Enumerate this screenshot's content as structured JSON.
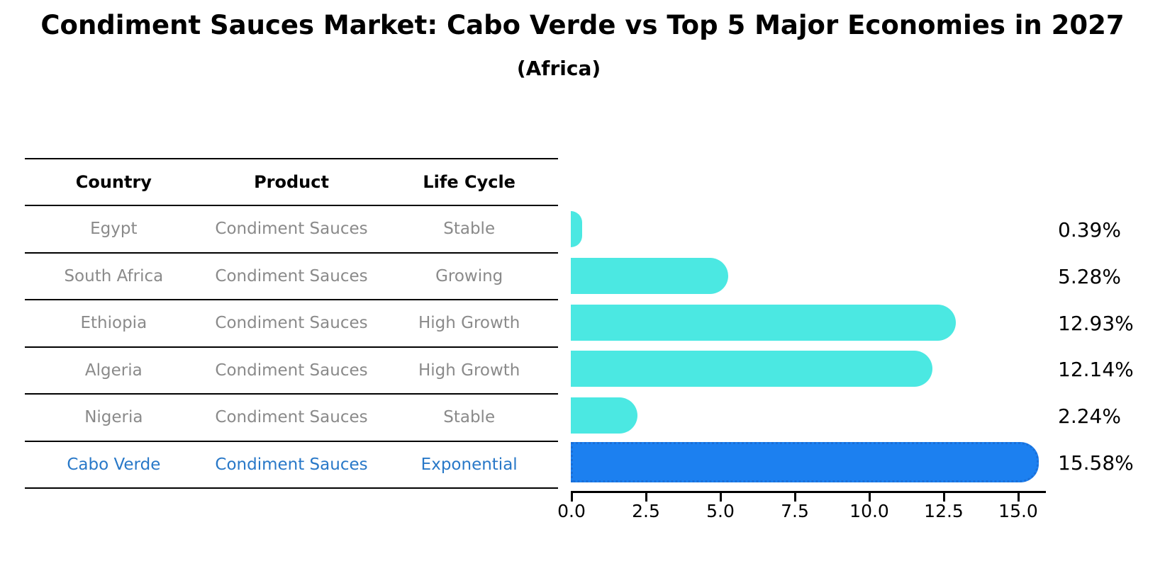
{
  "title": "Condiment Sauces Market: Cabo Verde vs Top 5 Major Economies in 2027",
  "subtitle": "(Africa)",
  "table": {
    "headers": [
      "Country",
      "Product",
      "Life Cycle"
    ],
    "rows": [
      {
        "country": "Egypt",
        "product": "Condiment Sauces",
        "life_cycle": "Stable",
        "highlight": false
      },
      {
        "country": "South Africa",
        "product": "Condiment Sauces",
        "life_cycle": "Growing",
        "highlight": false
      },
      {
        "country": "Ethiopia",
        "product": "Condiment Sauces",
        "life_cycle": "High Growth",
        "highlight": false
      },
      {
        "country": "Algeria",
        "product": "Condiment Sauces",
        "life_cycle": "High Growth",
        "highlight": false
      },
      {
        "country": "Nigeria",
        "product": "Condiment Sauces",
        "life_cycle": "Stable",
        "highlight": false
      },
      {
        "country": "Cabo Verde",
        "product": "Condiment Sauces",
        "life_cycle": "Exponential",
        "highlight": true
      }
    ]
  },
  "chart_data": {
    "type": "bar",
    "orientation": "horizontal",
    "title": "Condiment Sauces Market: Cabo Verde vs Top 5 Major Economies in 2027 (Africa)",
    "categories": [
      "Egypt",
      "South Africa",
      "Ethiopia",
      "Algeria",
      "Nigeria",
      "Cabo Verde"
    ],
    "values": [
      0.39,
      5.28,
      12.93,
      12.14,
      2.24,
      15.58
    ],
    "value_labels": [
      "0.39%",
      "5.28%",
      "12.93%",
      "12.14%",
      "2.24%",
      "15.58%"
    ],
    "unit": "%",
    "xticks": [
      "0.0",
      "2.5",
      "5.0",
      "7.5",
      "10.0",
      "12.5",
      "15.0"
    ],
    "xlim": [
      0,
      16
    ],
    "grid": false,
    "legend": false,
    "highlight_index": 5,
    "colors": {
      "normal": "#4be8e2",
      "highlight": "#1c80f0",
      "highlight_text": "#2878c8",
      "body_text": "#8a8a8a",
      "axis": "#000000"
    }
  }
}
